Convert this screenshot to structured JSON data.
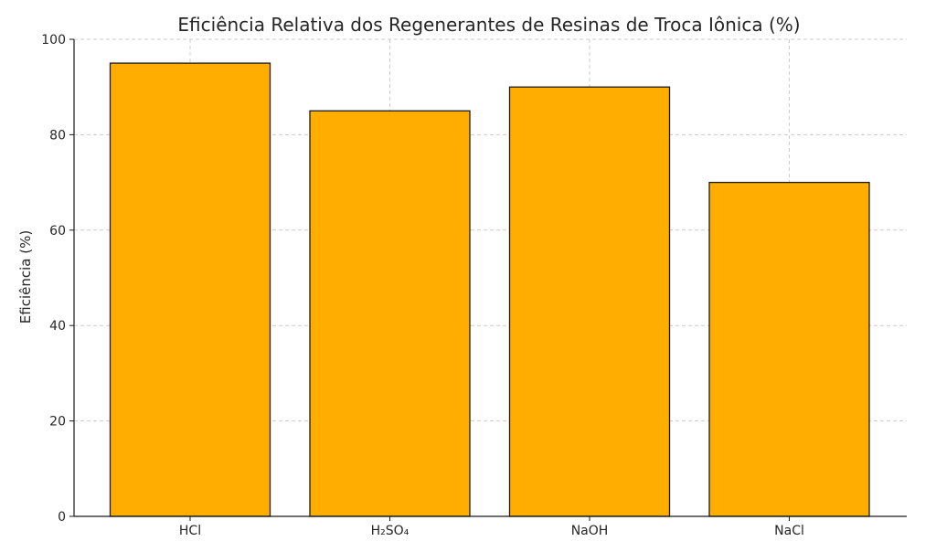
{
  "chart_data": {
    "type": "bar",
    "title": "Eficiência Relativa dos Regenerantes de Resinas de Troca Iônica (%)",
    "xlabel": "",
    "ylabel": "Eficiência (%)",
    "categories": [
      "HCl",
      "H₂SO₄",
      "NaOH",
      "NaCl"
    ],
    "values": [
      95,
      85,
      90,
      70
    ],
    "ylim": [
      0,
      100
    ],
    "yticks": [
      0,
      20,
      40,
      60,
      80,
      100
    ],
    "grid": true,
    "legend": "none",
    "colors": {
      "bar_fill": "#FFAE00",
      "bar_edge": "#1a1a1a",
      "grid": "#cccccc",
      "axis": "#1a1a1a",
      "text": "#262626"
    }
  }
}
